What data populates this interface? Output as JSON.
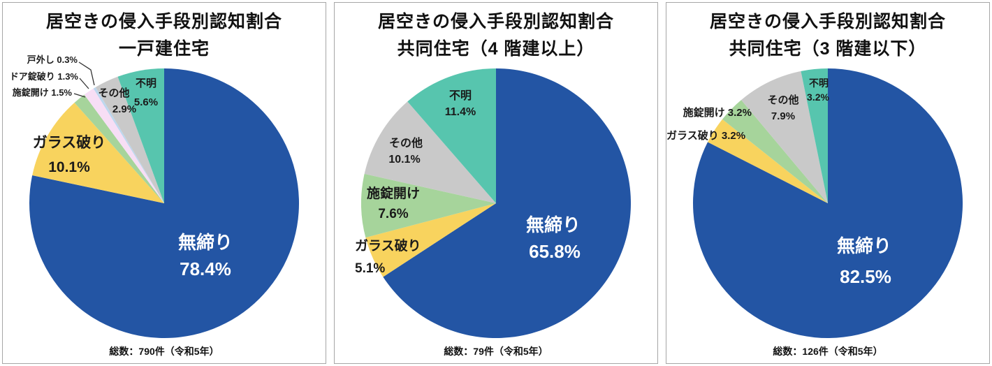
{
  "chart_data": [
    {
      "type": "pie",
      "title": "居空きの侵入手段別認知割合",
      "subtitle": "一戸建住宅",
      "footer": "総数：790件（令和5年）",
      "start_angle_deg": 0,
      "direction": "clockwise",
      "unit": "%",
      "slices": [
        {
          "label": "無締り",
          "value": 78.4,
          "pct": "78.4%",
          "color": "#2355a4"
        },
        {
          "label": "ガラス破り",
          "value": 10.1,
          "pct": "10.1%",
          "color": "#f8d35e"
        },
        {
          "label": "施錠開け",
          "value": 1.5,
          "pct": "1.5%",
          "color": "#a6d49b"
        },
        {
          "label": "ドア錠破り",
          "value": 1.3,
          "pct": "1.3%",
          "color": "#f7def5"
        },
        {
          "label": "戸外し",
          "value": 0.3,
          "pct": "0.3%",
          "color": "#bdd7ee"
        },
        {
          "label": "その他",
          "value": 2.9,
          "pct": "2.9%",
          "color": "#c9c9c9"
        },
        {
          "label": "不明",
          "value": 5.6,
          "pct": "5.6%",
          "color": "#57c5ae"
        }
      ]
    },
    {
      "type": "pie",
      "title": "居空きの侵入手段別認知割合",
      "subtitle": "共同住宅（4 階建以上）",
      "footer": "総数：79件（令和5年）",
      "start_angle_deg": 0,
      "direction": "clockwise",
      "unit": "%",
      "slices": [
        {
          "label": "無締り",
          "value": 65.8,
          "pct": "65.8%",
          "color": "#2355a4"
        },
        {
          "label": "ガラス破り",
          "value": 5.1,
          "pct": "5.1%",
          "color": "#f8d35e"
        },
        {
          "label": "施錠開け",
          "value": 7.6,
          "pct": "7.6%",
          "color": "#a6d49b"
        },
        {
          "label": "その他",
          "value": 10.1,
          "pct": "10.1%",
          "color": "#c9c9c9"
        },
        {
          "label": "不明",
          "value": 11.4,
          "pct": "11.4%",
          "color": "#57c5ae"
        }
      ]
    },
    {
      "type": "pie",
      "title": "居空きの侵入手段別認知割合",
      "subtitle": "共同住宅（3 階建以下）",
      "footer": "総数：126件（令和5年）",
      "start_angle_deg": 0,
      "direction": "clockwise",
      "unit": "%",
      "slices": [
        {
          "label": "無締り",
          "value": 82.5,
          "pct": "82.5%",
          "color": "#2355a4"
        },
        {
          "label": "ガラス破り",
          "value": 3.2,
          "pct": "3.2%",
          "color": "#f8d35e"
        },
        {
          "label": "施錠開け",
          "value": 3.2,
          "pct": "3.2%",
          "color": "#a6d49b"
        },
        {
          "label": "その他",
          "value": 7.9,
          "pct": "7.9%",
          "color": "#c9c9c9"
        },
        {
          "label": "不明",
          "value": 3.2,
          "pct": "3.2%",
          "color": "#57c5ae"
        }
      ]
    }
  ]
}
